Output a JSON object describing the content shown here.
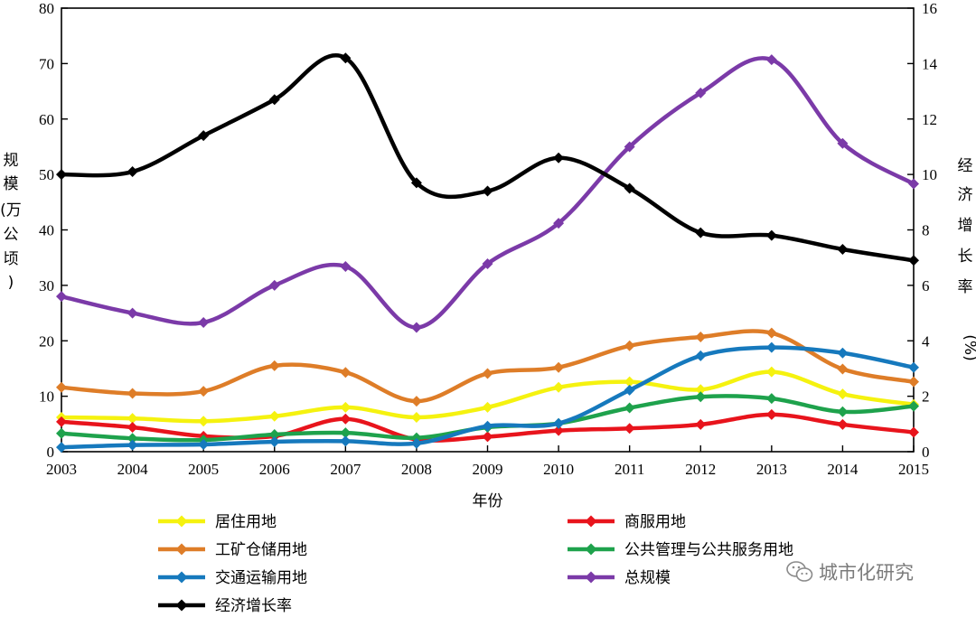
{
  "chart_data": {
    "type": "line",
    "xlabel": "年份",
    "ylabel_left": [
      "规",
      "模",
      "(万",
      "公",
      "顷",
      ")"
    ],
    "ylabel_right": [
      "经",
      "济",
      "增",
      "长",
      "率",
      "(%)"
    ],
    "x": [
      "2003",
      "2004",
      "2005",
      "2006",
      "2007",
      "2008",
      "2009",
      "2010",
      "2011",
      "2012",
      "2013",
      "2014",
      "2015"
    ],
    "ylim_left": [
      0,
      80
    ],
    "ylim_right": [
      0,
      16
    ],
    "yticks_left": [
      "0",
      "10",
      "20",
      "30",
      "40",
      "50",
      "60",
      "70",
      "80"
    ],
    "yticks_right": [
      "0",
      "2",
      "4",
      "6",
      "8",
      "10",
      "12",
      "14",
      "16"
    ],
    "grid": false,
    "legend_position": "bottom",
    "series": [
      {
        "name": "居住用地",
        "color": "#f5f20f",
        "axis": "left",
        "values": [
          6.2,
          6.0,
          5.5,
          6.4,
          8.0,
          6.2,
          8.0,
          11.6,
          12.6,
          11.2,
          14.4,
          10.4,
          8.5
        ]
      },
      {
        "name": "商服用地",
        "color": "#e8141c",
        "axis": "left",
        "values": [
          5.4,
          4.4,
          2.8,
          2.8,
          5.9,
          2.2,
          2.7,
          3.8,
          4.2,
          4.9,
          6.7,
          4.9,
          3.5
        ]
      },
      {
        "name": "工矿仓储用地",
        "color": "#de7d28",
        "axis": "left",
        "values": [
          11.6,
          10.5,
          10.9,
          15.5,
          14.3,
          9.1,
          14.1,
          15.2,
          19.1,
          20.7,
          21.4,
          14.9,
          12.6
        ]
      },
      {
        "name": "公共管理与公共服务用地",
        "color": "#1ea24c",
        "axis": "left",
        "values": [
          3.3,
          2.4,
          2.1,
          3.1,
          3.4,
          2.5,
          4.4,
          5.1,
          7.9,
          9.9,
          9.6,
          7.2,
          8.2
        ]
      },
      {
        "name": "交通运输用地",
        "color": "#1679bd",
        "axis": "left",
        "values": [
          0.8,
          1.2,
          1.3,
          1.8,
          1.9,
          1.5,
          4.6,
          5.1,
          11.1,
          17.3,
          18.8,
          17.8,
          15.2
        ]
      },
      {
        "name": "总规模",
        "color": "#7b3aa8",
        "axis": "left",
        "values": [
          28.0,
          25.0,
          23.3,
          30.0,
          33.4,
          22.4,
          33.9,
          41.2,
          55.0,
          64.7,
          70.7,
          55.6,
          48.3
        ]
      },
      {
        "name": "经济增长率",
        "color": "#000000",
        "axis": "right",
        "values": [
          10.0,
          10.1,
          11.4,
          12.7,
          14.2,
          9.7,
          9.4,
          10.6,
          9.5,
          7.9,
          7.8,
          7.3,
          6.9
        ]
      }
    ]
  },
  "watermark": {
    "text": "城市化研究",
    "icon": "wechat-icon"
  }
}
